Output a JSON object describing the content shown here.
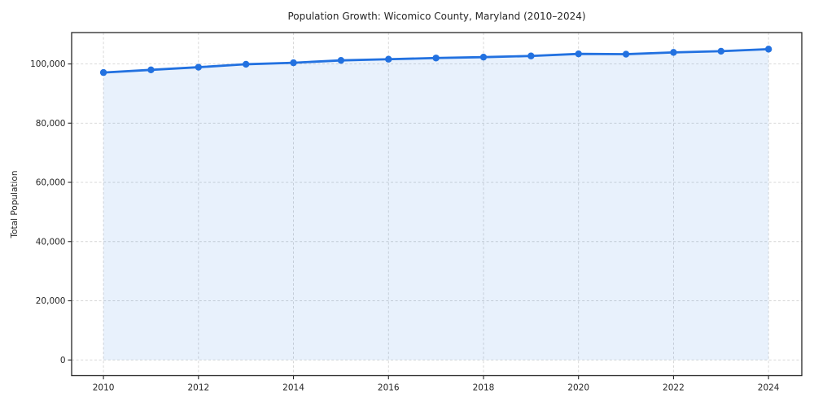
{
  "chart_data": {
    "type": "line",
    "title": "Population Growth: Wicomico County, Maryland (2010–2024)",
    "ylabel": "Total Population",
    "xlabel": "",
    "x": [
      2010,
      2011,
      2012,
      2013,
      2014,
      2015,
      2016,
      2017,
      2018,
      2019,
      2020,
      2021,
      2022,
      2023,
      2024
    ],
    "series": [
      {
        "name": "Total Population",
        "values": [
          97100,
          98000,
          98900,
          99900,
          100400,
          101200,
          101600,
          102000,
          102300,
          102700,
          103400,
          103300,
          103900,
          104300,
          105000
        ]
      }
    ],
    "x_tick_values": [
      2010,
      2012,
      2014,
      2016,
      2018,
      2020,
      2022,
      2024
    ],
    "x_tick_labels": [
      "2010",
      "2012",
      "2014",
      "2016",
      "2018",
      "2020",
      "2022",
      "2024"
    ],
    "y_tick_values": [
      0,
      20000,
      40000,
      60000,
      80000,
      100000
    ],
    "y_tick_labels": [
      "0",
      "20,000",
      "40,000",
      "60,000",
      "80,000",
      "100,000"
    ],
    "xlim": [
      2009.33,
      2024.7
    ],
    "ylim": [
      -5300,
      110600
    ],
    "grid": true,
    "grid_style": "dashed",
    "legend": "none",
    "line_color": "#2271e0",
    "marker_color": "#2271e0",
    "marker": "circle",
    "fill_color": "#2271e0",
    "fill_opacity": 0.1,
    "fill_baseline": 0,
    "grid_color": "#d4d4d4",
    "spine_color": "#262626",
    "background": "#ffffff"
  }
}
